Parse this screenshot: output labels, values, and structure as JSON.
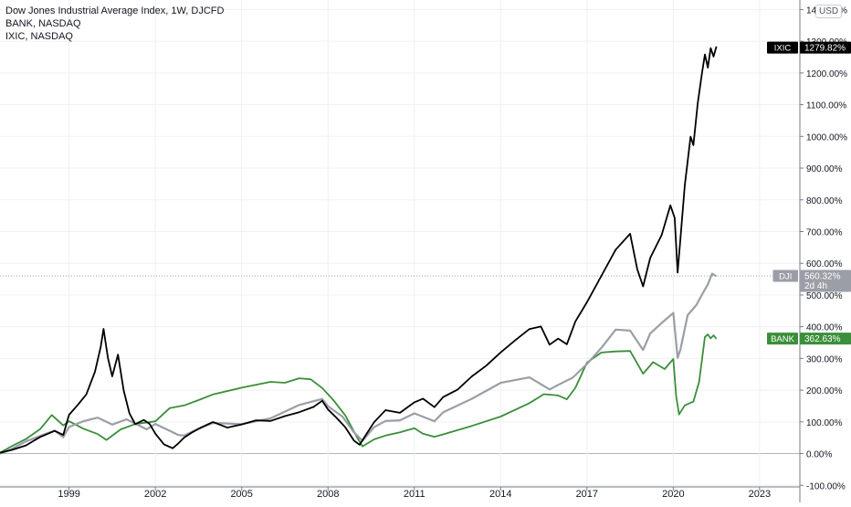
{
  "legend": {
    "line1": "Dow Jones Industrial Average Index, 1W, DJCFD",
    "line2": "BANK, NASDAQ",
    "line3": "IXIC, NASDAQ"
  },
  "currency": "USD",
  "colors": {
    "ixic": "#000000",
    "dji": "#9b9ea6",
    "bank": "#3b8e3a",
    "grid": "#eef0f3",
    "axis": "#787b86",
    "zero_line": "#b2b5be"
  },
  "chart_data": {
    "type": "line",
    "x_unit": "year",
    "xlim": [
      1996.6,
      2024.4
    ],
    "ylim": [
      -105,
      1430
    ],
    "y_unit": "%",
    "x_ticks": [
      {
        "value": 1999,
        "label": "1999"
      },
      {
        "value": 2002,
        "label": "2002"
      },
      {
        "value": 2005,
        "label": "2005"
      },
      {
        "value": 2008,
        "label": "2008"
      },
      {
        "value": 2011,
        "label": "2011"
      },
      {
        "value": 2014,
        "label": "2014"
      },
      {
        "value": 2017,
        "label": "2017"
      },
      {
        "value": 2020,
        "label": "2020"
      },
      {
        "value": 2023,
        "label": "2023"
      }
    ],
    "y_ticks": [
      {
        "value": 1400,
        "label": "1400.00%"
      },
      {
        "value": 1300,
        "label": "1300.00%"
      },
      {
        "value": 1200,
        "label": "1200.00%"
      },
      {
        "value": 1100,
        "label": "1100.00%"
      },
      {
        "value": 1000,
        "label": "1000.00%"
      },
      {
        "value": 900,
        "label": "900.00%"
      },
      {
        "value": 800,
        "label": "800.00%"
      },
      {
        "value": 700,
        "label": "700.00%"
      },
      {
        "value": 600,
        "label": "600.00%"
      },
      {
        "value": 500,
        "label": "500.00%"
      },
      {
        "value": 400,
        "label": "400.00%"
      },
      {
        "value": 300,
        "label": "300.00%"
      },
      {
        "value": 200,
        "label": "200.00%"
      },
      {
        "value": 100,
        "label": "100.00%"
      },
      {
        "value": 0,
        "label": "0.00%"
      },
      {
        "value": -100,
        "label": "-100.00%"
      }
    ],
    "series": [
      {
        "name": "IXIC",
        "color": "#000000",
        "x": [
          1996.6,
          1997.0,
          1997.5,
          1998.0,
          1998.5,
          1998.8,
          1999.0,
          1999.3,
          1999.6,
          1999.9,
          2000.1,
          2000.2,
          2000.35,
          2000.5,
          2000.7,
          2000.9,
          2001.1,
          2001.3,
          2001.6,
          2001.8,
          2002.0,
          2002.3,
          2002.6,
          2002.8,
          2003.0,
          2003.3,
          2003.6,
          2004.0,
          2004.5,
          2005.0,
          2005.5,
          2006.0,
          2006.5,
          2007.0,
          2007.5,
          2007.8,
          2008.0,
          2008.3,
          2008.6,
          2008.9,
          2009.1,
          2009.3,
          2009.6,
          2010.0,
          2010.5,
          2011.0,
          2011.3,
          2011.7,
          2012.0,
          2012.5,
          2013.0,
          2013.5,
          2014.0,
          2014.5,
          2015.0,
          2015.4,
          2015.7,
          2016.0,
          2016.3,
          2016.6,
          2017.0,
          2017.5,
          2018.0,
          2018.5,
          2018.75,
          2018.95,
          2019.2,
          2019.6,
          2019.9,
          2020.05,
          2020.15,
          2020.25,
          2020.4,
          2020.6,
          2020.7,
          2020.85,
          2021.0,
          2021.1,
          2021.2,
          2021.3,
          2021.4,
          2021.5
        ],
        "y": [
          0,
          8,
          25,
          55,
          75,
          60,
          120,
          150,
          185,
          260,
          340,
          395,
          300,
          240,
          310,
          200,
          130,
          95,
          105,
          90,
          60,
          30,
          20,
          35,
          50,
          65,
          80,
          100,
          85,
          95,
          105,
          100,
          115,
          130,
          150,
          170,
          140,
          110,
          80,
          40,
          30,
          60,
          100,
          135,
          125,
          160,
          175,
          150,
          180,
          200,
          240,
          275,
          320,
          360,
          395,
          400,
          340,
          360,
          345,
          420,
          480,
          560,
          640,
          690,
          580,
          530,
          620,
          690,
          780,
          740,
          570,
          680,
          850,
          1000,
          970,
          1100,
          1200,
          1260,
          1220,
          1280,
          1250,
          1280
        ]
      },
      {
        "name": "DJI",
        "color": "#9b9ea6",
        "x": [
          1996.6,
          1997.0,
          1997.5,
          1998.0,
          1998.5,
          1998.8,
          1999.0,
          1999.5,
          2000.0,
          2000.5,
          2001.0,
          2001.7,
          2002.0,
          2002.5,
          2002.8,
          2003.0,
          2003.5,
          2004.0,
          2005.0,
          2006.0,
          2007.0,
          2007.8,
          2008.0,
          2008.5,
          2008.9,
          2009.2,
          2009.6,
          2010.0,
          2010.5,
          2011.0,
          2011.7,
          2012.0,
          2013.0,
          2014.0,
          2015.0,
          2015.7,
          2016.0,
          2016.5,
          2017.0,
          2017.5,
          2018.0,
          2018.5,
          2018.95,
          2019.2,
          2019.6,
          2020.0,
          2020.15,
          2020.25,
          2020.5,
          2020.8,
          2021.0,
          2021.2,
          2021.35,
          2021.5
        ],
        "y": [
          0,
          12,
          35,
          55,
          75,
          55,
          85,
          100,
          110,
          90,
          110,
          80,
          95,
          70,
          55,
          55,
          80,
          100,
          95,
          110,
          150,
          170,
          150,
          120,
          70,
          40,
          80,
          100,
          105,
          130,
          105,
          130,
          170,
          220,
          240,
          205,
          220,
          240,
          280,
          330,
          390,
          390,
          330,
          380,
          410,
          440,
          300,
          330,
          440,
          470,
          500,
          530,
          565,
          560
        ]
      },
      {
        "name": "BANK",
        "color": "#3b8e3a",
        "x": [
          1996.6,
          1997.0,
          1997.5,
          1998.0,
          1998.4,
          1998.8,
          1999.0,
          1999.5,
          2000.0,
          2000.3,
          2000.8,
          2001.3,
          2002.0,
          2002.5,
          2003.0,
          2003.5,
          2004.0,
          2005.0,
          2006.0,
          2006.5,
          2007.0,
          2007.4,
          2007.8,
          2008.2,
          2008.6,
          2009.0,
          2009.2,
          2009.6,
          2010.0,
          2010.5,
          2011.0,
          2011.3,
          2011.7,
          2012.0,
          2013.0,
          2014.0,
          2015.0,
          2015.5,
          2016.0,
          2016.3,
          2016.6,
          2017.0,
          2017.5,
          2018.0,
          2018.5,
          2018.95,
          2019.3,
          2019.7,
          2020.0,
          2020.1,
          2020.2,
          2020.4,
          2020.7,
          2020.9,
          2021.1,
          2021.2,
          2021.3,
          2021.4,
          2021.5
        ],
        "y": [
          0,
          20,
          45,
          80,
          125,
          90,
          100,
          75,
          60,
          45,
          80,
          95,
          100,
          140,
          150,
          170,
          190,
          210,
          225,
          220,
          235,
          235,
          210,
          170,
          120,
          50,
          20,
          45,
          60,
          70,
          80,
          60,
          50,
          60,
          90,
          120,
          160,
          185,
          180,
          170,
          210,
          290,
          320,
          320,
          320,
          250,
          290,
          270,
          300,
          180,
          120,
          150,
          165,
          230,
          370,
          375,
          360,
          370,
          362
        ]
      }
    ],
    "price_labels": [
      {
        "series": "IXIC",
        "name": "IXIC",
        "value": 1279.82,
        "text": "1279.82%"
      },
      {
        "series": "DJI",
        "name": "DJI",
        "value": 560.32,
        "text": "560.32%",
        "sub": "2d 4h"
      },
      {
        "series": "BANK",
        "name": "BANK",
        "value": 362.63,
        "text": "362.63%"
      }
    ],
    "grid": true,
    "legend_position": "top-left"
  }
}
